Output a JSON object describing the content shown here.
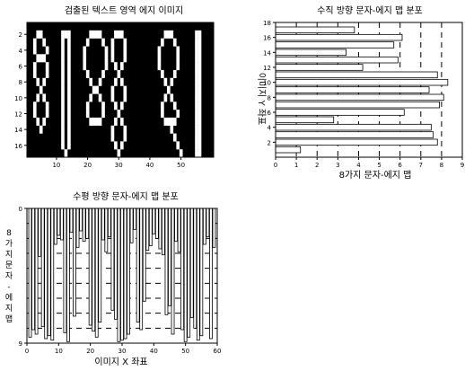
{
  "chart_data": [
    {
      "type": "heatmap",
      "title": "검출된 텍스트 영역 에지 이미지",
      "xlabel": "",
      "ylabel": "",
      "xlim": [
        0.5,
        60.5
      ],
      "ylim": [
        17.5,
        0.5
      ],
      "xticks": [
        10,
        20,
        30,
        40,
        50
      ],
      "yticks": [
        2,
        4,
        6,
        8,
        10,
        12,
        14,
        16
      ],
      "background": "#000000",
      "foreground": "#ffffff",
      "pixels": [
        {
          "x": 4,
          "y": 2
        },
        {
          "x": 5,
          "y": 2
        },
        {
          "x": 12,
          "y": 2
        },
        {
          "x": 13,
          "y": 2
        },
        {
          "x": 14,
          "y": 2
        },
        {
          "x": 21,
          "y": 2
        },
        {
          "x": 22,
          "y": 2
        },
        {
          "x": 23,
          "y": 2
        },
        {
          "x": 24,
          "y": 2
        },
        {
          "x": 29,
          "y": 2
        },
        {
          "x": 30,
          "y": 2
        },
        {
          "x": 31,
          "y": 2
        },
        {
          "x": 45,
          "y": 2
        },
        {
          "x": 46,
          "y": 2
        },
        {
          "x": 47,
          "y": 2
        },
        {
          "x": 55,
          "y": 2
        },
        {
          "x": 56,
          "y": 2
        },
        {
          "x": 3,
          "y": 3
        },
        {
          "x": 6,
          "y": 3
        },
        {
          "x": 12,
          "y": 3
        },
        {
          "x": 14,
          "y": 3
        },
        {
          "x": 20,
          "y": 3
        },
        {
          "x": 25,
          "y": 3
        },
        {
          "x": 28,
          "y": 3
        },
        {
          "x": 32,
          "y": 3
        },
        {
          "x": 44,
          "y": 3
        },
        {
          "x": 48,
          "y": 3
        },
        {
          "x": 55,
          "y": 3
        },
        {
          "x": 56,
          "y": 3
        },
        {
          "x": 3,
          "y": 4
        },
        {
          "x": 7,
          "y": 4
        },
        {
          "x": 12,
          "y": 4
        },
        {
          "x": 14,
          "y": 4
        },
        {
          "x": 19,
          "y": 4
        },
        {
          "x": 26,
          "y": 4
        },
        {
          "x": 28,
          "y": 4
        },
        {
          "x": 32,
          "y": 4
        },
        {
          "x": 43,
          "y": 4
        },
        {
          "x": 49,
          "y": 4
        },
        {
          "x": 55,
          "y": 4
        },
        {
          "x": 56,
          "y": 4
        },
        {
          "x": 4,
          "y": 5
        },
        {
          "x": 5,
          "y": 5
        },
        {
          "x": 6,
          "y": 5
        },
        {
          "x": 12,
          "y": 5
        },
        {
          "x": 14,
          "y": 5
        },
        {
          "x": 19,
          "y": 5
        },
        {
          "x": 26,
          "y": 5
        },
        {
          "x": 28,
          "y": 5
        },
        {
          "x": 32,
          "y": 5
        },
        {
          "x": 43,
          "y": 5
        },
        {
          "x": 49,
          "y": 5
        },
        {
          "x": 55,
          "y": 5
        },
        {
          "x": 56,
          "y": 5
        },
        {
          "x": 3,
          "y": 6
        },
        {
          "x": 7,
          "y": 6
        },
        {
          "x": 12,
          "y": 6
        },
        {
          "x": 14,
          "y": 6
        },
        {
          "x": 19,
          "y": 6
        },
        {
          "x": 26,
          "y": 6
        },
        {
          "x": 29,
          "y": 6
        },
        {
          "x": 31,
          "y": 6
        },
        {
          "x": 43,
          "y": 6
        },
        {
          "x": 49,
          "y": 6
        },
        {
          "x": 55,
          "y": 6
        },
        {
          "x": 56,
          "y": 6
        },
        {
          "x": 3,
          "y": 7
        },
        {
          "x": 7,
          "y": 7
        },
        {
          "x": 12,
          "y": 7
        },
        {
          "x": 14,
          "y": 7
        },
        {
          "x": 20,
          "y": 7
        },
        {
          "x": 25,
          "y": 7
        },
        {
          "x": 30,
          "y": 7
        },
        {
          "x": 44,
          "y": 7
        },
        {
          "x": 48,
          "y": 7
        },
        {
          "x": 55,
          "y": 7
        },
        {
          "x": 56,
          "y": 7
        },
        {
          "x": 4,
          "y": 8
        },
        {
          "x": 6,
          "y": 8
        },
        {
          "x": 12,
          "y": 8
        },
        {
          "x": 14,
          "y": 8
        },
        {
          "x": 21,
          "y": 8
        },
        {
          "x": 24,
          "y": 8
        },
        {
          "x": 29,
          "y": 8
        },
        {
          "x": 31,
          "y": 8
        },
        {
          "x": 45,
          "y": 8
        },
        {
          "x": 47,
          "y": 8
        },
        {
          "x": 55,
          "y": 8
        },
        {
          "x": 56,
          "y": 8
        },
        {
          "x": 5,
          "y": 9
        },
        {
          "x": 12,
          "y": 9
        },
        {
          "x": 14,
          "y": 9
        },
        {
          "x": 22,
          "y": 9
        },
        {
          "x": 23,
          "y": 9
        },
        {
          "x": 28,
          "y": 9
        },
        {
          "x": 32,
          "y": 9
        },
        {
          "x": 46,
          "y": 9
        },
        {
          "x": 55,
          "y": 9
        },
        {
          "x": 56,
          "y": 9
        },
        {
          "x": 4,
          "y": 10
        },
        {
          "x": 6,
          "y": 10
        },
        {
          "x": 12,
          "y": 10
        },
        {
          "x": 14,
          "y": 10
        },
        {
          "x": 21,
          "y": 10
        },
        {
          "x": 24,
          "y": 10
        },
        {
          "x": 28,
          "y": 10
        },
        {
          "x": 32,
          "y": 10
        },
        {
          "x": 45,
          "y": 10
        },
        {
          "x": 47,
          "y": 10
        },
        {
          "x": 55,
          "y": 10
        },
        {
          "x": 56,
          "y": 10
        },
        {
          "x": 3,
          "y": 11
        },
        {
          "x": 7,
          "y": 11
        },
        {
          "x": 12,
          "y": 11
        },
        {
          "x": 14,
          "y": 11
        },
        {
          "x": 20,
          "y": 11
        },
        {
          "x": 25,
          "y": 11
        },
        {
          "x": 29,
          "y": 11
        },
        {
          "x": 31,
          "y": 11
        },
        {
          "x": 44,
          "y": 11
        },
        {
          "x": 48,
          "y": 11
        },
        {
          "x": 55,
          "y": 11
        },
        {
          "x": 56,
          "y": 11
        },
        {
          "x": 3,
          "y": 12
        },
        {
          "x": 7,
          "y": 12
        },
        {
          "x": 12,
          "y": 12
        },
        {
          "x": 14,
          "y": 12
        },
        {
          "x": 20,
          "y": 12
        },
        {
          "x": 25,
          "y": 12
        },
        {
          "x": 30,
          "y": 12
        },
        {
          "x": 44,
          "y": 12
        },
        {
          "x": 49,
          "y": 12
        },
        {
          "x": 55,
          "y": 12
        },
        {
          "x": 56,
          "y": 12
        },
        {
          "x": 4,
          "y": 13
        },
        {
          "x": 6,
          "y": 13
        },
        {
          "x": 12,
          "y": 13
        },
        {
          "x": 14,
          "y": 13
        },
        {
          "x": 21,
          "y": 13
        },
        {
          "x": 22,
          "y": 13
        },
        {
          "x": 23,
          "y": 13
        },
        {
          "x": 24,
          "y": 13
        },
        {
          "x": 29,
          "y": 13
        },
        {
          "x": 31,
          "y": 13
        },
        {
          "x": 45,
          "y": 13
        },
        {
          "x": 46,
          "y": 13
        },
        {
          "x": 47,
          "y": 13
        },
        {
          "x": 48,
          "y": 13
        },
        {
          "x": 55,
          "y": 13
        },
        {
          "x": 56,
          "y": 13
        },
        {
          "x": 5,
          "y": 14
        },
        {
          "x": 12,
          "y": 14
        },
        {
          "x": 14,
          "y": 14
        },
        {
          "x": 28,
          "y": 14
        },
        {
          "x": 32,
          "y": 14
        },
        {
          "x": 47,
          "y": 14
        },
        {
          "x": 55,
          "y": 14
        },
        {
          "x": 56,
          "y": 14
        },
        {
          "x": 12,
          "y": 15
        },
        {
          "x": 14,
          "y": 15
        },
        {
          "x": 28,
          "y": 15
        },
        {
          "x": 32,
          "y": 15
        },
        {
          "x": 48,
          "y": 15
        },
        {
          "x": 55,
          "y": 15
        },
        {
          "x": 56,
          "y": 15
        },
        {
          "x": 12,
          "y": 16
        },
        {
          "x": 14,
          "y": 16
        },
        {
          "x": 29,
          "y": 16
        },
        {
          "x": 31,
          "y": 16
        },
        {
          "x": 49,
          "y": 16
        },
        {
          "x": 55,
          "y": 16
        },
        {
          "x": 56,
          "y": 16
        },
        {
          "x": 13,
          "y": 17
        },
        {
          "x": 30,
          "y": 17
        },
        {
          "x": 50,
          "y": 17
        },
        {
          "x": 55,
          "y": 17
        },
        {
          "x": 56,
          "y": 17
        }
      ]
    },
    {
      "type": "bar",
      "orientation": "horizontal",
      "title": "수직 방향 문자-에지 맵 분포",
      "xlabel": "8가지 문자-에지 맵",
      "ylabel": "이미지 Y 좌표",
      "xlim": [
        0,
        9
      ],
      "ylim": [
        0,
        18
      ],
      "xticks": [
        0,
        1,
        2,
        3,
        4,
        5,
        6,
        7,
        8,
        9
      ],
      "yticks": [
        2,
        4,
        6,
        8,
        10,
        12,
        14,
        16,
        18
      ],
      "grid_x_dashed": [
        1,
        2,
        3,
        4,
        5,
        6,
        7,
        8
      ],
      "categories": [
        1,
        2,
        3,
        4,
        5,
        6,
        7,
        8,
        9,
        10,
        11,
        12,
        13,
        14,
        15,
        16,
        17
      ],
      "values": [
        1.2,
        7.8,
        7.6,
        7.5,
        2.8,
        6.2,
        7.9,
        8.1,
        7.4,
        8.3,
        7.8,
        4.2,
        5.9,
        3.4,
        5.7,
        6.1,
        3.8
      ]
    },
    {
      "type": "bar",
      "orientation": "vertical",
      "title": "수평 방향 문자-에지 맵 분포",
      "xlabel": "이미지 X 좌표",
      "ylabel": "8가지 문자-에지 맵",
      "xlim": [
        0,
        60
      ],
      "ylim": [
        9,
        0
      ],
      "xticks": [
        0,
        10,
        20,
        30,
        40,
        50,
        60
      ],
      "yticks": [
        0,
        9
      ],
      "grid_y_dashed": [
        1,
        2,
        3,
        4,
        5,
        6,
        7,
        8
      ],
      "categories": [
        1,
        2,
        3,
        4,
        5,
        6,
        7,
        8,
        9,
        10,
        11,
        12,
        13,
        14,
        15,
        16,
        17,
        18,
        19,
        20,
        21,
        22,
        23,
        24,
        25,
        26,
        27,
        28,
        29,
        30,
        31,
        32,
        33,
        34,
        35,
        36,
        37,
        38,
        39,
        40,
        41,
        42,
        43,
        44,
        45,
        46,
        47,
        48,
        49,
        50,
        51,
        52,
        53,
        54,
        55,
        56,
        57,
        58,
        59
      ],
      "values": [
        8.6,
        8.1,
        8.4,
        3.2,
        7.9,
        8.7,
        8.5,
        8.8,
        2.4,
        1.8,
        2.1,
        8.3,
        8.9,
        1.6,
        7.2,
        2.6,
        1.5,
        2.2,
        2.0,
        7.8,
        8.2,
        8.6,
        7.6,
        2.1,
        2.9,
        1.9,
        6.8,
        7.4,
        8.9,
        8.8,
        8.7,
        8.4,
        2.3,
        1.4,
        7.6,
        8.1,
        6.2,
        2.8,
        2.5,
        1.7,
        2.0,
        2.7,
        3.1,
        7.1,
        6.5,
        8.4,
        2.2,
        2.9,
        8.1,
        8.9,
        8.6,
        7.3,
        8.0,
        8.8,
        8.5,
        2.4,
        1.9,
        8.7,
        2.6
      ]
    }
  ]
}
